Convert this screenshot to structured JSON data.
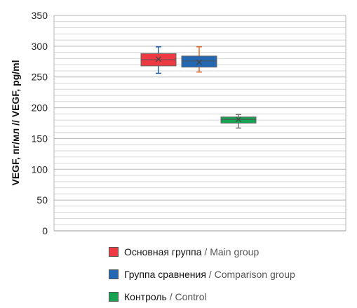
{
  "chart_data": {
    "type": "boxplot",
    "ylabel": "VEGF, пг/мл // VEGF, pg/ml",
    "ylim": [
      0,
      350
    ],
    "yticks": [
      0,
      50,
      100,
      150,
      200,
      250,
      300,
      350
    ],
    "minor_gridlines_step": 10,
    "grid": true,
    "legend_position": "bottom",
    "series": [
      {
        "name_ru": "Основная группа",
        "name_en": "Main group",
        "color": "#ee3a43",
        "whisker_color": "#1f5fa8",
        "min": 256,
        "q1": 268,
        "median": 278,
        "mean": 279,
        "q3": 288,
        "max": 299
      },
      {
        "name_ru": "Группа сравнения",
        "name_en": "Comparison group",
        "color": "#2467b3",
        "whisker_color": "#e06a2c",
        "min": 258,
        "q1": 266,
        "median": 276,
        "mean": 274,
        "q3": 284,
        "max": 299
      },
      {
        "name_ru": "Контроль",
        "name_en": "Control",
        "color": "#17a351",
        "whisker_color": "#777777",
        "min": 167,
        "q1": 175,
        "median": 181,
        "mean": 181,
        "q3": 185,
        "max": 189
      }
    ]
  },
  "legend": {
    "separator": " / ",
    "items": [
      {
        "ru": "Основная группа",
        "en": "Main group"
      },
      {
        "ru": "Группа сравнения",
        "en": "Comparison group"
      },
      {
        "ru": "Контроль",
        "en": "Control"
      }
    ]
  }
}
